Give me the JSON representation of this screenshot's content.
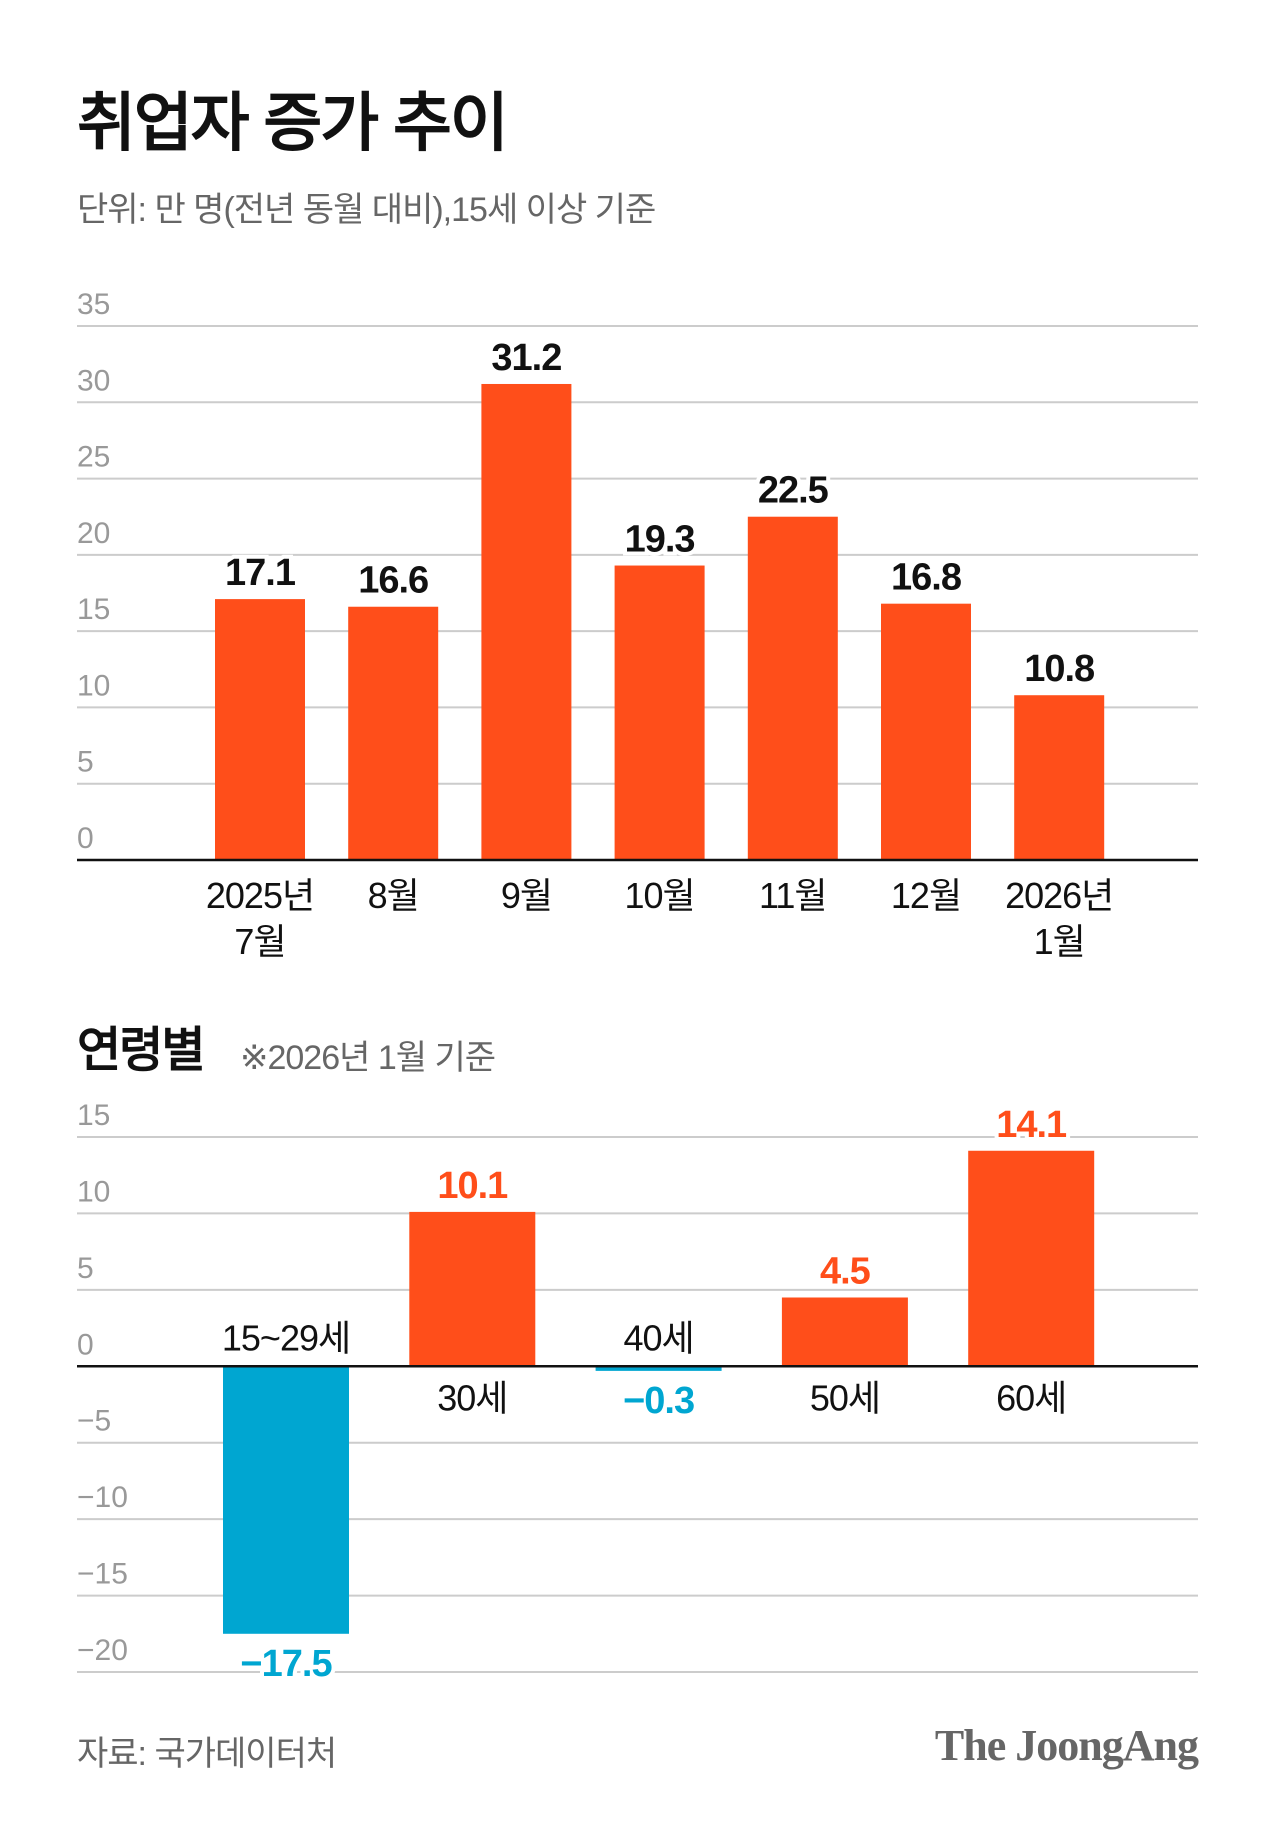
{
  "header": {
    "title": "취업자 증가 추이",
    "subtitle": "단위: 만 명(전년 동월 대비),15세 이상 기준"
  },
  "section2": {
    "title": "연령별",
    "note": "※2026년 1월 기준"
  },
  "footer": {
    "source": "자료: 국가데이터처",
    "logo": "The JoongAng"
  },
  "colors": {
    "positive": "#FF4E1A",
    "negative": "#00A6D1",
    "grid": "#cccccc",
    "axis": "#111111",
    "tick": "#999999"
  },
  "chart_data": [
    {
      "type": "bar",
      "categories": [
        "2025년\n7월",
        "8월",
        "9월",
        "10월",
        "11월",
        "12월",
        "2026년\n1월"
      ],
      "values": [
        17.1,
        16.6,
        31.2,
        19.3,
        22.5,
        16.8,
        10.8
      ],
      "value_labels": [
        "17.1",
        "16.6",
        "31.2",
        "19.3",
        "22.5",
        "16.8",
        "10.8"
      ],
      "ylim": [
        0,
        35
      ],
      "yticks": [
        "0",
        "5",
        "10",
        "15",
        "20",
        "25",
        "30",
        "35"
      ],
      "grid": true
    },
    {
      "type": "bar",
      "categories": [
        "15~29세",
        "30세",
        "40세",
        "50세",
        "60세"
      ],
      "values": [
        -17.5,
        10.1,
        -0.3,
        4.5,
        14.1
      ],
      "value_labels": [
        "−17.5",
        "10.1",
        "−0.3",
        "4.5",
        "14.1"
      ],
      "ylim": [
        -20,
        15
      ],
      "yticks": [
        "−20",
        "−15",
        "−10",
        "−5",
        "0",
        "5",
        "10",
        "15"
      ],
      "grid": true
    }
  ]
}
